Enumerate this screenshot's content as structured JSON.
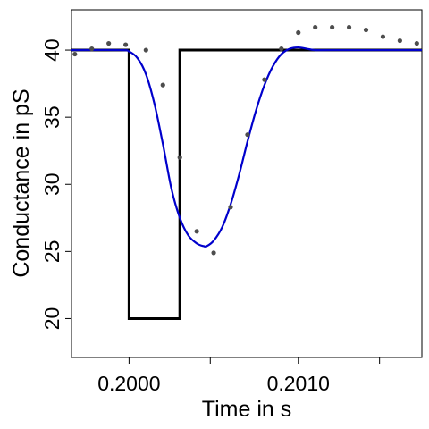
{
  "chart_data": {
    "type": "line",
    "xlabel": "Time in s",
    "ylabel": "Conductance in pS",
    "xlim": [
      0.19966,
      0.20173
    ],
    "ylim": [
      17.1,
      43.0
    ],
    "x_ticks": [
      {
        "value": 0.2,
        "label": "0.2000"
      },
      {
        "value": 0.20048,
        "label": ""
      },
      {
        "value": 0.201,
        "label": "0.2010"
      },
      {
        "value": 0.20148,
        "label": ""
      }
    ],
    "y_ticks": [
      {
        "value": 20,
        "label": "20"
      },
      {
        "value": 25,
        "label": "25"
      },
      {
        "value": 30,
        "label": "30"
      },
      {
        "value": 35,
        "label": "35"
      },
      {
        "value": 40,
        "label": "40"
      }
    ],
    "grid": false,
    "series": [
      {
        "kind": "step",
        "color": "#000000",
        "x": [
          0.19966,
          0.2,
          0.2,
          0.2003,
          0.2003,
          0.20173
        ],
        "y": [
          40,
          40,
          20,
          20,
          40,
          40
        ]
      },
      {
        "kind": "curve",
        "color": "#0000cc",
        "x": [
          0.19966,
          0.19995,
          0.2,
          0.20005,
          0.2001,
          0.20015,
          0.2002,
          0.20025,
          0.2003,
          0.20035,
          0.2004,
          0.20044,
          0.20046,
          0.2005,
          0.20055,
          0.2006,
          0.20065,
          0.2007,
          0.20075,
          0.2008,
          0.20085,
          0.2009,
          0.20095,
          0.201,
          0.20105,
          0.2011,
          0.2012,
          0.20173
        ],
        "y": [
          40,
          40,
          39.9,
          39.4,
          38.2,
          36.0,
          33.0,
          29.7,
          27.5,
          26.2,
          25.6,
          25.4,
          25.4,
          25.8,
          26.8,
          28.5,
          30.7,
          33.2,
          35.5,
          37.4,
          38.8,
          39.7,
          40.1,
          40.2,
          40.1,
          40.0,
          40.0,
          40.0
        ]
      },
      {
        "kind": "points",
        "color": "#4d4d4d",
        "x": [
          0.19968,
          0.19978,
          0.19988,
          0.19998,
          0.2001,
          0.2002,
          0.2003,
          0.2004,
          0.2005,
          0.2006,
          0.2007,
          0.2008,
          0.2009,
          0.201,
          0.2011,
          0.2012,
          0.2013,
          0.2014,
          0.2015,
          0.2016,
          0.2017
        ],
        "y": [
          39.7,
          40.1,
          40.5,
          40.4,
          40.0,
          37.4,
          32.0,
          26.5,
          24.9,
          28.3,
          33.7,
          37.8,
          40.1,
          41.3,
          41.7,
          41.7,
          41.7,
          41.5,
          41.0,
          40.7,
          40.5
        ]
      }
    ]
  }
}
